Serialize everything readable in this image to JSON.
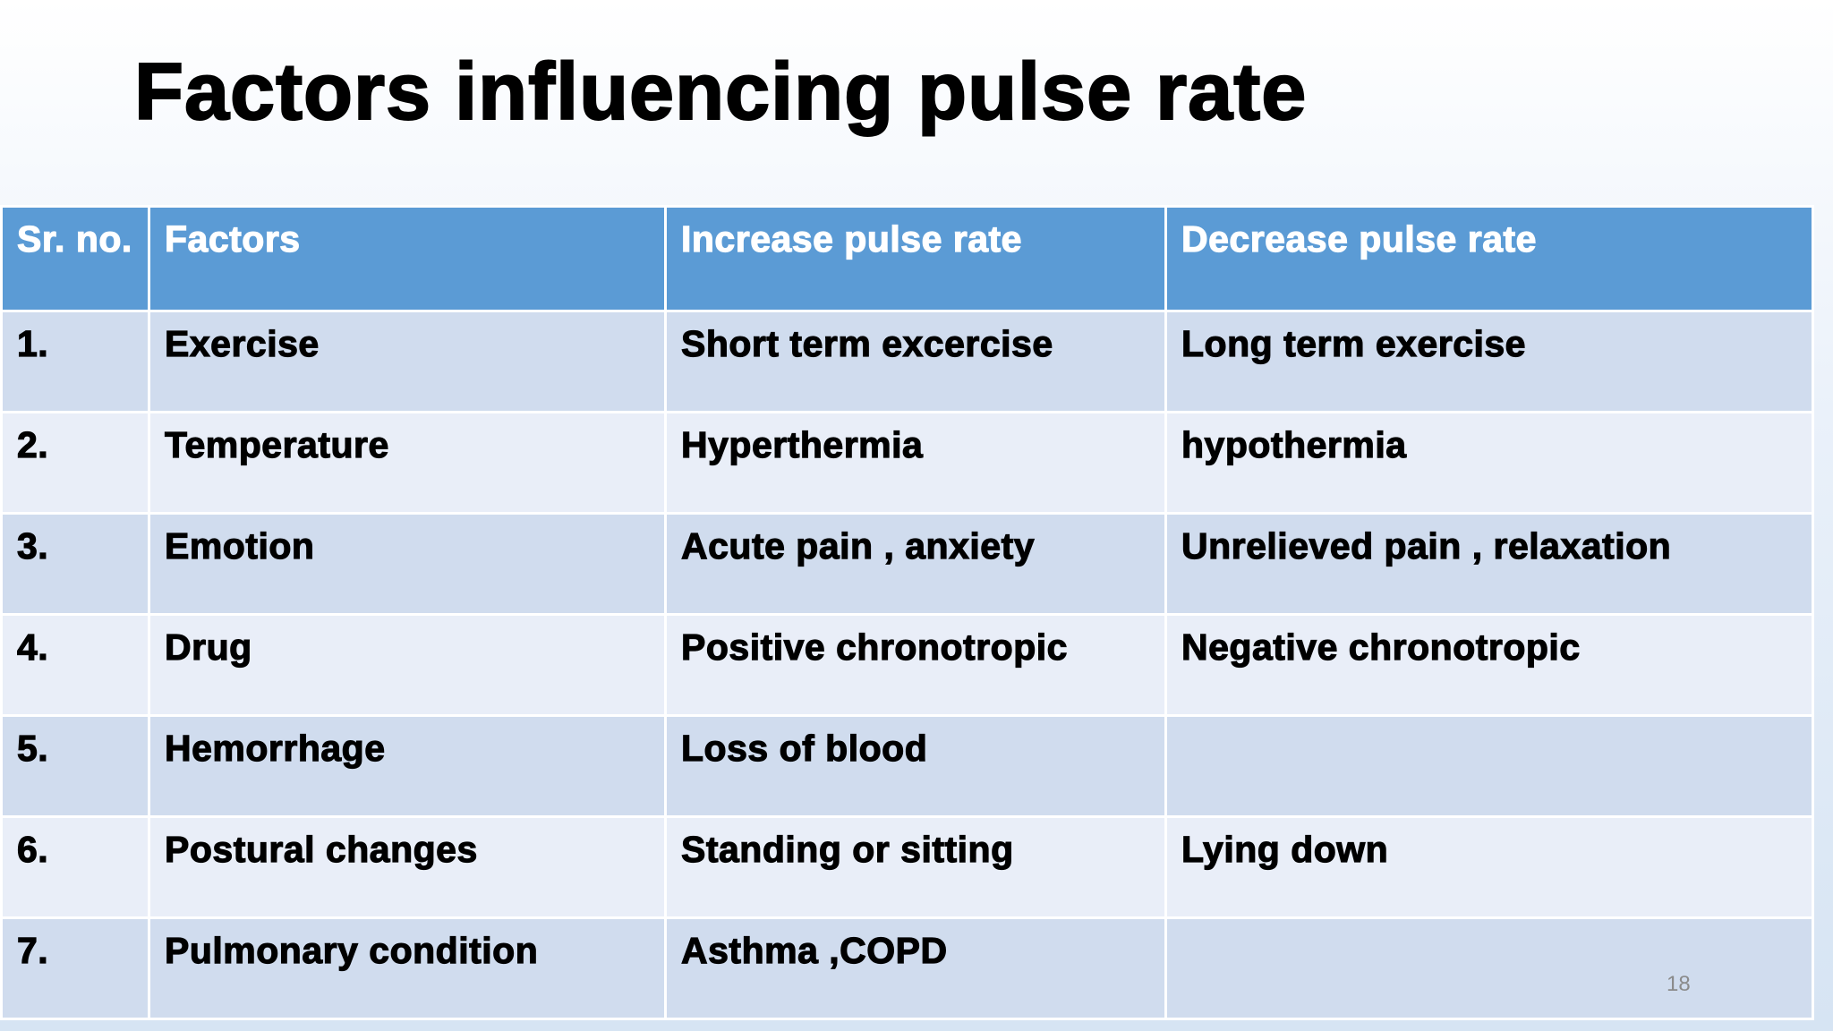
{
  "header": {
    "title": "Factors influencing pulse rate"
  },
  "table": {
    "columns": [
      "Sr. no.",
      "Factors",
      "Increase pulse rate",
      "Decrease pulse rate"
    ],
    "rows": [
      [
        "1.",
        "Exercise",
        "Short term excercise",
        "Long term exercise"
      ],
      [
        "2.",
        "Temperature",
        "Hyperthermia",
        "hypothermia"
      ],
      [
        "3.",
        "Emotion",
        "Acute pain , anxiety",
        "Unrelieved pain , relaxation"
      ],
      [
        "4.",
        "Drug",
        "Positive chronotropic",
        "Negative chronotropic"
      ],
      [
        "5.",
        "Hemorrhage",
        "Loss of blood",
        null
      ],
      [
        "6.",
        "Postural changes",
        "Standing or sitting",
        "Lying down"
      ],
      [
        "7.",
        "Pulmonary condition",
        "Asthma ,COPD",
        null
      ]
    ]
  },
  "footer": {
    "page_number": "18"
  }
}
